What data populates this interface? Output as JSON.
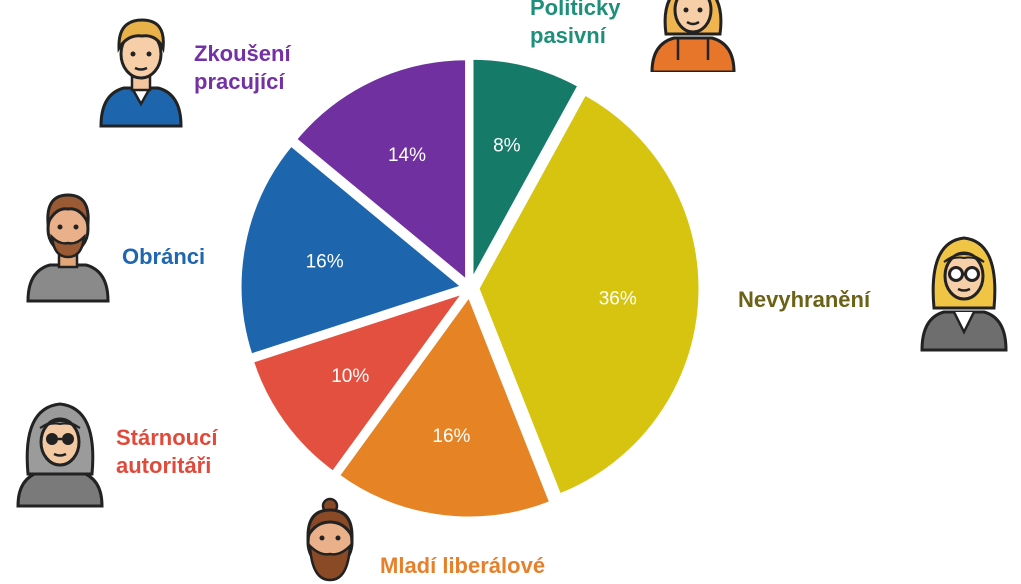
{
  "chart_data": {
    "type": "pie",
    "categories": [
      "Politicky pasivní",
      "Nevyhranění",
      "Mladí liberálové",
      "Stárnoucí autoritáři",
      "Obránci",
      "Zkoušení pracující"
    ],
    "values": [
      8,
      36,
      16,
      10,
      16,
      14
    ],
    "value_labels": [
      "8%",
      "36%",
      "16%",
      "10%",
      "16%",
      "14%"
    ],
    "colors": [
      "#167a69",
      "#d6c410",
      "#e68425",
      "#e4503f",
      "#1d66ad",
      "#7030a0"
    ],
    "label_colors": [
      "#1e8f7a",
      "#6b6217",
      "#e8802a",
      "#e14a3b",
      "#1f66b0",
      "#7431a6"
    ],
    "title": "",
    "legend": "none (categories labelled beside slices)"
  },
  "labels": {
    "passive_line1": "Politicky",
    "passive_line2": "pasivní",
    "undecided": "Nevyhranění",
    "young_liberals": "Mladí liberálové",
    "aging_authoritarians_line1": "Stárnoucí",
    "aging_authoritarians_line2": "autoritáři",
    "defenders": "Obránci",
    "working_line1": "Zkoušení",
    "working_line2": "pracující"
  },
  "avatars": {
    "passive": "woman-orange-top-avatar-icon",
    "undecided": "woman-glasses-suit-avatar-icon",
    "young_liberals": "bearded-man-bun-avatar-icon",
    "aging_authoritarians": "old-woman-sunglasses-avatar-icon",
    "defenders": "bearded-man-grey-shirt-avatar-icon",
    "working": "young-man-polo-avatar-icon"
  }
}
